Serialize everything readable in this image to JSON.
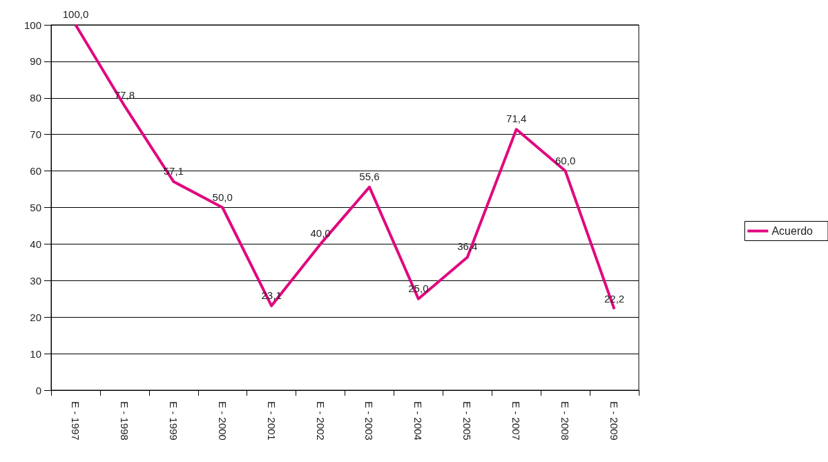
{
  "chart_data": {
    "type": "line",
    "categories": [
      "E - 1997",
      "E - 1998",
      "E - 1999",
      "E - 2000",
      "E - 2001",
      "E - 2002",
      "E - 2003",
      "E - 2004",
      "E - 2005",
      "E - 2007",
      "E - 2008",
      "E - 2009"
    ],
    "series": [
      {
        "name": "Acuerdo",
        "color": "#e0087f",
        "values": [
          100.0,
          77.8,
          57.1,
          50.0,
          23.1,
          40.0,
          55.6,
          25.0,
          36.4,
          71.4,
          60.0,
          22.2
        ],
        "value_labels": [
          "100,0",
          "77,8",
          "57,1",
          "50,0",
          "23,1",
          "40,0",
          "55,6",
          "25,0",
          "36,4",
          "71,4",
          "60,0",
          "22,2"
        ]
      }
    ],
    "ylim": [
      0,
      100
    ],
    "yticks": [
      0,
      10,
      20,
      30,
      40,
      50,
      60,
      70,
      80,
      90,
      100
    ],
    "grid": "y",
    "legend": "right",
    "marker": "none",
    "line_style": "solid"
  }
}
